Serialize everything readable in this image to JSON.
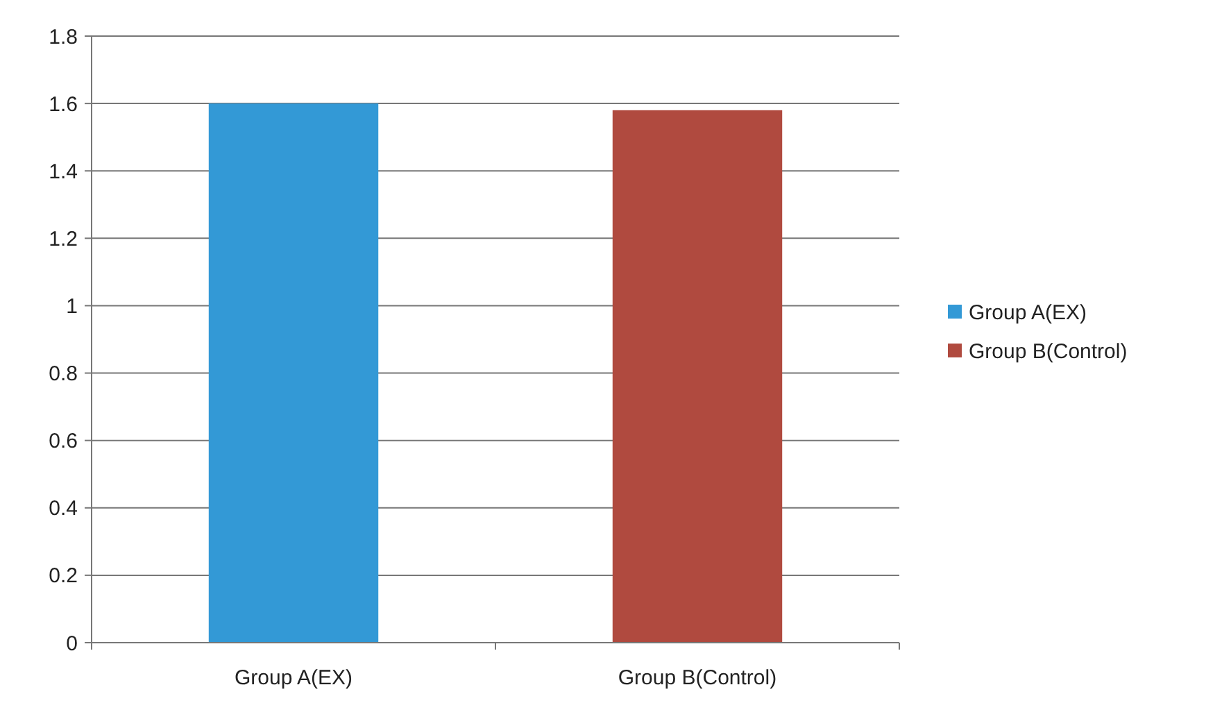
{
  "chart_data": {
    "type": "bar",
    "categories": [
      "Group A(EX)",
      "Group B(Control)"
    ],
    "series": [
      {
        "name": "Group A(EX)",
        "color": "#3399d6",
        "values": [
          1.6,
          null
        ]
      },
      {
        "name": "Group B(Control)",
        "color": "#b04a3f",
        "values": [
          null,
          1.58
        ]
      }
    ],
    "ylim": [
      0,
      1.8
    ],
    "yticks": [
      0,
      0.2,
      0.4,
      0.6,
      0.8,
      1,
      1.2,
      1.4,
      1.6,
      1.8
    ],
    "grid": "y",
    "legend": "right"
  }
}
